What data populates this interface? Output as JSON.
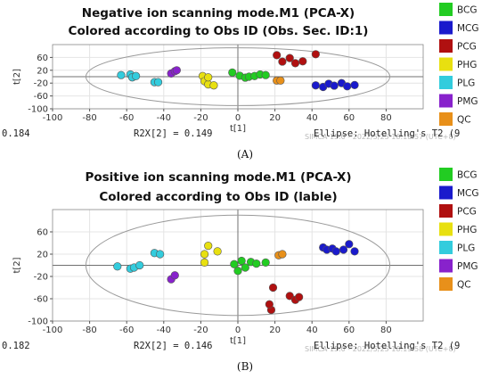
{
  "chart_data": [
    {
      "type": "scatter",
      "title": "Negative ion scanning mode.M1 (PCA-X)",
      "subtitle": "Colored according to Obs ID (Obs. Sec. ID:1)",
      "xlabel": "t[1]",
      "ylabel": "t[2]",
      "xlim": [
        -100,
        100
      ],
      "ylim": [
        -100,
        100
      ],
      "xticks": [
        -100,
        -80,
        -60,
        -40,
        -20,
        0,
        20,
        40,
        60,
        80
      ],
      "yticks": [
        60,
        20,
        -20,
        -60,
        -100
      ],
      "footer_left": "0.184",
      "footer_mid": "R2X[2] = 0.149",
      "footer_right": "Ellipse: Hotelling's T2 (9",
      "watermark": "SIMCA 15.0 - 2022/5/25 18:18:57 (UTC+8)",
      "panel_label": "(A)",
      "legend": [
        {
          "name": "BCG",
          "color": "#22cc22"
        },
        {
          "name": "MCG",
          "color": "#1a1acc"
        },
        {
          "name": "PCG",
          "color": "#b01010"
        },
        {
          "name": "PHG",
          "color": "#e8e010"
        },
        {
          "name": "PLG",
          "color": "#33ccdd"
        },
        {
          "name": "PMG",
          "color": "#8822cc"
        },
        {
          "name": "QC",
          "color": "#e8901a"
        }
      ],
      "series": [
        {
          "name": "BCG",
          "points": [
            [
              -3,
              13
            ],
            [
              1,
              3
            ],
            [
              4,
              -3
            ],
            [
              6,
              0
            ],
            [
              9,
              2
            ],
            [
              12,
              7
            ],
            [
              15,
              5
            ]
          ]
        },
        {
          "name": "MCG",
          "points": [
            [
              42,
              -27
            ],
            [
              46,
              -32
            ],
            [
              49,
              -22
            ],
            [
              52,
              -28
            ],
            [
              56,
              -20
            ],
            [
              59,
              -30
            ],
            [
              63,
              -26
            ]
          ]
        },
        {
          "name": "PCG",
          "points": [
            [
              21,
              67
            ],
            [
              24,
              47
            ],
            [
              28,
              58
            ],
            [
              31,
              42
            ],
            [
              35,
              48
            ],
            [
              42,
              70
            ]
          ]
        },
        {
          "name": "PHG",
          "points": [
            [
              -19,
              2
            ],
            [
              -18,
              -14
            ],
            [
              -16,
              -24
            ],
            [
              -13,
              -27
            ],
            [
              -16,
              -2
            ]
          ]
        },
        {
          "name": "PLG",
          "points": [
            [
              -63,
              5
            ],
            [
              -58,
              7
            ],
            [
              -57,
              -2
            ],
            [
              -55,
              2
            ],
            [
              -45,
              -17
            ],
            [
              -43,
              -17
            ]
          ]
        },
        {
          "name": "PMG",
          "points": [
            [
              -36,
              10
            ],
            [
              -34,
              17
            ],
            [
              -33,
              20
            ]
          ]
        },
        {
          "name": "QC",
          "points": [
            [
              21,
              -12
            ],
            [
              23,
              -12
            ]
          ]
        }
      ]
    },
    {
      "type": "scatter",
      "title": "Positive ion scanning mode.M1 (PCA-X)",
      "subtitle": "Colored according to Obs ID (lable)",
      "xlabel": "t[1]",
      "ylabel": "t[2]",
      "xlim": [
        -100,
        100
      ],
      "ylim": [
        -100,
        100
      ],
      "xticks": [
        -100,
        -80,
        -60,
        -40,
        -20,
        0,
        20,
        40,
        60,
        80
      ],
      "yticks": [
        60,
        20,
        -20,
        -60,
        -100
      ],
      "footer_left": "0.182",
      "footer_mid": "R2X[2] = 0.146",
      "footer_right": "Ellipse: Hotelling's T2 (9",
      "watermark": "SIMCA 15.0 - 2022/5/25 18:19:58 (UTC+8)",
      "panel_label": "(B)",
      "legend": [
        {
          "name": "BCG",
          "color": "#22cc22"
        },
        {
          "name": "MCG",
          "color": "#1a1acc"
        },
        {
          "name": "PCG",
          "color": "#b01010"
        },
        {
          "name": "PHG",
          "color": "#e8e010"
        },
        {
          "name": "PLG",
          "color": "#33ccdd"
        },
        {
          "name": "PMG",
          "color": "#8822cc"
        },
        {
          "name": "QC",
          "color": "#e8901a"
        }
      ],
      "series": [
        {
          "name": "BCG",
          "points": [
            [
              -2,
              2
            ],
            [
              2,
              8
            ],
            [
              4,
              -4
            ],
            [
              7,
              6
            ],
            [
              10,
              3
            ],
            [
              15,
              5
            ],
            [
              0,
              -10
            ]
          ]
        },
        {
          "name": "MCG",
          "points": [
            [
              46,
              32
            ],
            [
              48,
              28
            ],
            [
              51,
              30
            ],
            [
              53,
              25
            ],
            [
              57,
              28
            ],
            [
              60,
              38
            ],
            [
              63,
              25
            ]
          ]
        },
        {
          "name": "PCG",
          "points": [
            [
              18,
              -80
            ],
            [
              17,
              -70
            ],
            [
              19,
              -40
            ],
            [
              28,
              -55
            ],
            [
              31,
              -62
            ],
            [
              33,
              -57
            ]
          ]
        },
        {
          "name": "PHG",
          "points": [
            [
              -18,
              20
            ],
            [
              -18,
              5
            ],
            [
              -16,
              35
            ],
            [
              -11,
              25
            ]
          ]
        },
        {
          "name": "PLG",
          "points": [
            [
              -65,
              -2
            ],
            [
              -58,
              -6
            ],
            [
              -56,
              -4
            ],
            [
              -53,
              0
            ],
            [
              -45,
              22
            ],
            [
              -42,
              20
            ]
          ]
        },
        {
          "name": "PMG",
          "points": [
            [
              -36,
              -25
            ],
            [
              -34,
              -18
            ]
          ]
        },
        {
          "name": "QC",
          "points": [
            [
              22,
              18
            ],
            [
              24,
              20
            ]
          ]
        }
      ]
    }
  ]
}
